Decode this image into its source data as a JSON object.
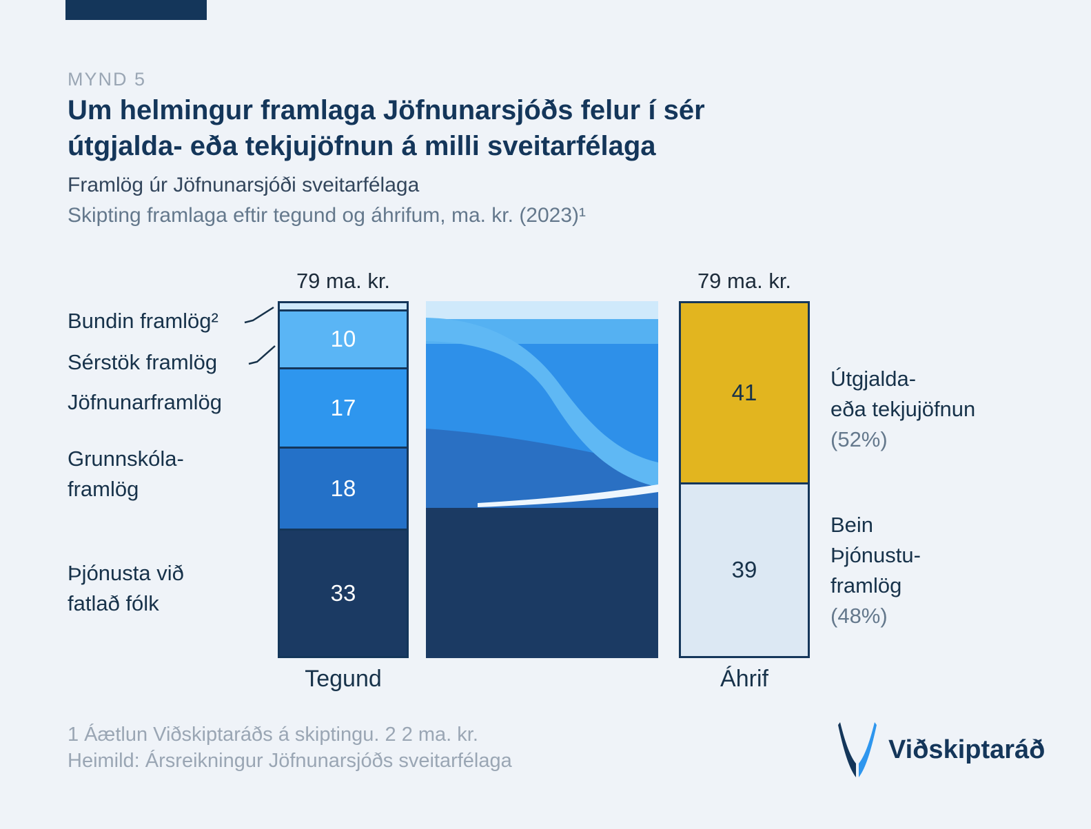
{
  "page": {
    "kicker": "MYND 5",
    "title": "Um helmingur framlaga Jöfnunarsjóðs felur í sér útgjalda- eða tekjujöfnun á milli sveitarfélaga",
    "subtitle": "Framlög úr Jöfnunarsjóði sveitarfélaga",
    "subtitle2": "Skipting framlaga eftir tegund og áhrifum, ma. kr. (2023)¹",
    "footnote": "1 Áætlun Viðskiptaráðs á skiptingu. 2 2 ma. kr.",
    "source": "Heimild: Ársreikningur Jöfnunarsjóðs sveitarfélaga",
    "logo_text": "Viðskiptaráð"
  },
  "colors": {
    "background": "#eff3f8",
    "navy": "#14365a",
    "text_dark": "#17324a",
    "text_gray": "#64788c",
    "text_light_gray": "#9aa6b4",
    "gold": "#e2b51f",
    "pale_blue": "#dce8f3",
    "bright_blue": "#2e96ee",
    "mid_blue": "#2471c8",
    "light_blue": "#5ab5f5",
    "very_light_blue": "#cfe9fb",
    "flow_base": "#2e90e9",
    "flow_dark_band": "#2a70c3",
    "flow_navy": "#1b3a63",
    "flow_swoosh": "#5fb8f4",
    "flow_pale_strip": "#cfe9fb",
    "flow_light_strip": "#55b1f2",
    "flow_white": "#eef6fd"
  },
  "chart_data": {
    "type": "bar",
    "stacked": true,
    "unit": "ma. kr.",
    "year": "2023",
    "columns": [
      {
        "label": "Tegund",
        "total": 79,
        "total_label": "79 ma. kr.",
        "segments_top_to_bottom": [
          {
            "name": "Bundin framlög",
            "value": 2,
            "color": "#cfe9fb",
            "show_value": false
          },
          {
            "name": "Sérstök framlög",
            "value": 10,
            "color": "#5ab5f5",
            "show_value": true,
            "text_color": "#ffffff"
          },
          {
            "name": "Jöfnunarframlög",
            "value": 17,
            "color": "#2e96ee",
            "show_value": true,
            "text_color": "#ffffff"
          },
          {
            "name": "Grunnskólaframlög",
            "value": 18,
            "color": "#2471c8",
            "show_value": true,
            "text_color": "#ffffff"
          },
          {
            "name": "Þjónusta við fatlað fólk",
            "value": 33,
            "color": "#1b3a63",
            "show_value": true,
            "text_color": "#ffffff"
          }
        ]
      },
      {
        "label": "Áhrif",
        "total": 79,
        "total_label": "79 ma. kr.",
        "segments_top_to_bottom": [
          {
            "name": "Útgjalda- eða tekjujöfnun",
            "value": 41,
            "color": "#e2b51f",
            "show_value": true,
            "text_color": "#17324a"
          },
          {
            "name": "Bein þjónustuframlög",
            "value": 39,
            "color": "#dce8f3",
            "show_value": true,
            "text_color": "#17324a"
          }
        ]
      }
    ],
    "left_labels": [
      {
        "lines": [
          "Bundin framlög²"
        ]
      },
      {
        "lines": [
          "Sérstök framlög"
        ]
      },
      {
        "lines": [
          "Jöfnunarframlög"
        ]
      },
      {
        "lines": [
          "Grunnskóla-",
          "framlög"
        ]
      },
      {
        "lines": [
          "Þjónusta við",
          "fatlað fólk"
        ]
      }
    ],
    "right_labels": [
      {
        "lines": [
          "Útgjalda-",
          "eða tekjujöfnun"
        ],
        "pct": "(52%)"
      },
      {
        "lines": [
          "Bein",
          "Þjónustu-",
          "framlög"
        ],
        "pct": "(48%)"
      }
    ]
  }
}
